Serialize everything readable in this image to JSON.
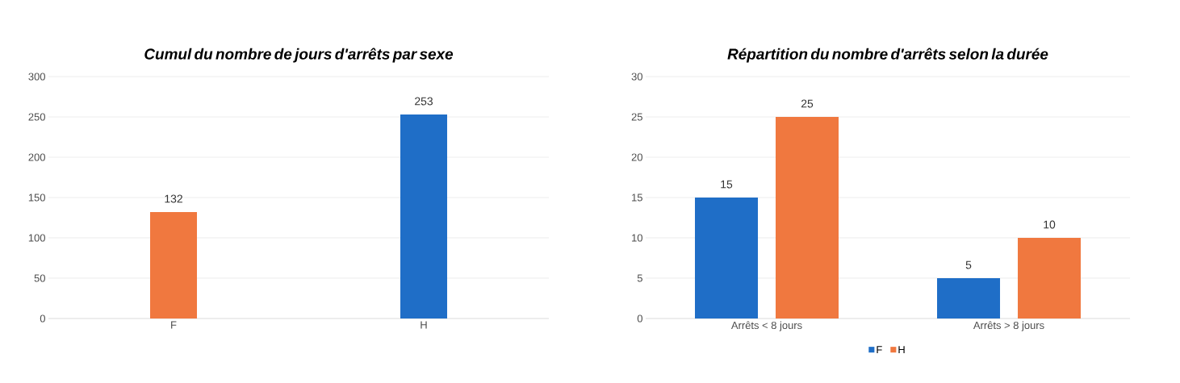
{
  "chart_data": [
    {
      "type": "bar",
      "title": "Cumul du nombre de jours d'arrêts par sexe",
      "categories": [
        "F",
        "H"
      ],
      "values": [
        132,
        253
      ],
      "colors": [
        "#f0783f",
        "#1f6ec7"
      ],
      "ylim": [
        0,
        300
      ],
      "yticks": [
        0,
        50,
        100,
        150,
        200,
        250,
        300
      ],
      "grid": "y",
      "data_labels": true
    },
    {
      "type": "bar",
      "title": "Répartition du nombre d'arrêts selon la durée",
      "categories": [
        "Arrêts < 8 jours",
        "Arrêts > 8 jours"
      ],
      "series": [
        {
          "name": "F",
          "color": "#1f6ec7",
          "values": [
            15,
            5
          ]
        },
        {
          "name": "H",
          "color": "#f0783f",
          "values": [
            25,
            10
          ]
        }
      ],
      "ylim": [
        0,
        30
      ],
      "yticks": [
        0,
        5,
        10,
        15,
        20,
        25,
        30
      ],
      "grid": "y",
      "legend": "bottom",
      "data_labels": true
    }
  ]
}
